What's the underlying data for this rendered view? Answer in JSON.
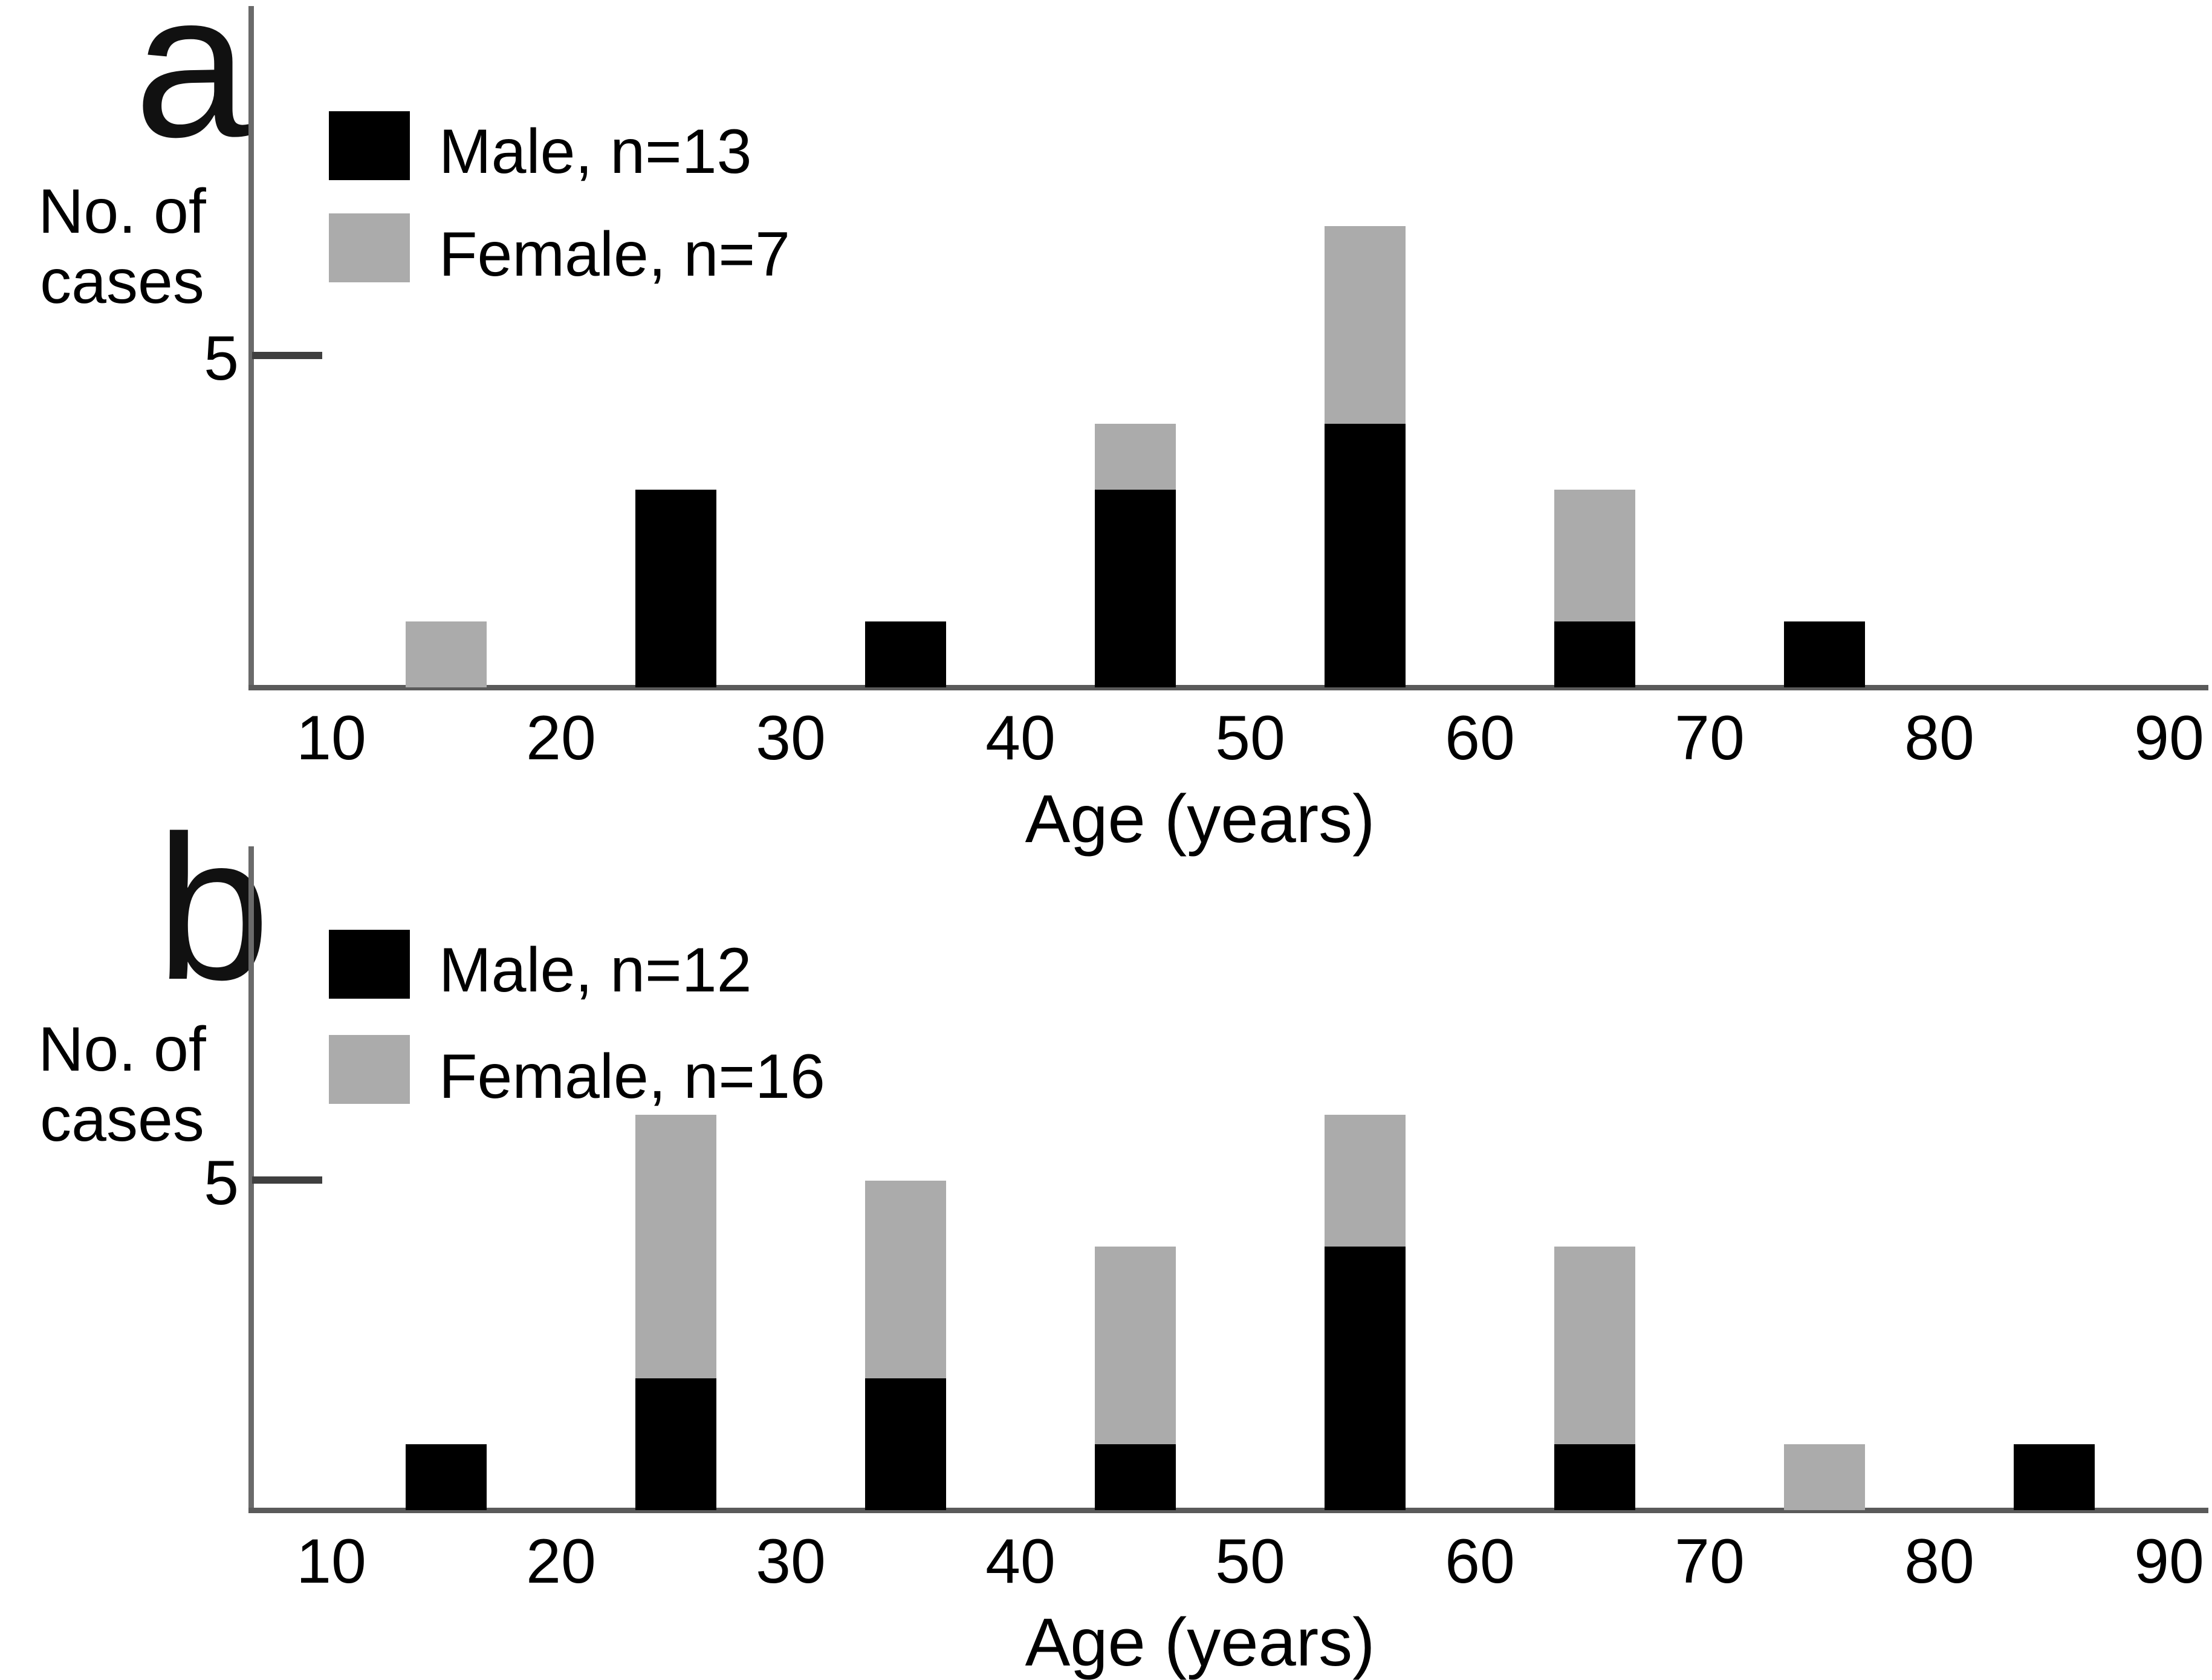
{
  "figure": {
    "colors": {
      "male": "#000000",
      "female": "#ababab",
      "axis": "#5a5a5a",
      "text": "#000000",
      "background": "#ffffff"
    },
    "panels": [
      {
        "label": "a",
        "y_axis_label_line1": "No. of",
        "y_axis_label_line2": "cases",
        "y_tick_label": "5",
        "x_axis_label": "Age (years)",
        "legend": [
          {
            "name": "male",
            "label": "Male, n=13",
            "color": "#000000"
          },
          {
            "name": "female",
            "label": "Female, n=7",
            "color": "#ababab"
          }
        ]
      },
      {
        "label": "b",
        "y_axis_label_line1": "No. of",
        "y_axis_label_line2": "cases",
        "y_tick_label": "5",
        "x_axis_label": "Age (years)",
        "legend": [
          {
            "name": "male",
            "label": "Male, n=12",
            "color": "#000000"
          },
          {
            "name": "female",
            "label": "Female, n=16",
            "color": "#ababab"
          }
        ]
      }
    ]
  },
  "chart_data": [
    {
      "type": "bar",
      "stacked": true,
      "panel": "a",
      "categories": [
        15,
        25,
        35,
        45,
        55,
        65,
        75,
        85
      ],
      "series": [
        {
          "name": "Male, n=13",
          "color": "#000000",
          "values": [
            0,
            3,
            1,
            3,
            4,
            1,
            1,
            0
          ]
        },
        {
          "name": "Female, n=7",
          "color": "#ababab",
          "values": [
            1,
            0,
            0,
            1,
            3,
            2,
            0,
            0
          ]
        }
      ],
      "xlabel": "Age (years)",
      "ylabel": "No. of cases",
      "xticks": [
        10,
        20,
        30,
        40,
        50,
        60,
        70,
        80,
        90
      ],
      "yticks": [
        5
      ],
      "ylim": [
        0,
        7.5
      ],
      "grid": false,
      "legend_position": "upper-left-inside"
    },
    {
      "type": "bar",
      "stacked": true,
      "panel": "b",
      "categories": [
        15,
        25,
        35,
        45,
        55,
        65,
        75,
        85
      ],
      "series": [
        {
          "name": "Male, n=12",
          "color": "#000000",
          "values": [
            1,
            2,
            2,
            1,
            4,
            1,
            0,
            1
          ]
        },
        {
          "name": "Female, n=16",
          "color": "#ababab",
          "values": [
            0,
            4,
            3,
            3,
            2,
            3,
            1,
            0
          ]
        }
      ],
      "xlabel": "Age (years)",
      "ylabel": "No. of cases",
      "xticks": [
        10,
        20,
        30,
        40,
        50,
        60,
        70,
        80,
        90
      ],
      "yticks": [
        5
      ],
      "ylim": [
        0,
        7.5
      ],
      "grid": false,
      "legend_position": "upper-left-inside"
    }
  ]
}
